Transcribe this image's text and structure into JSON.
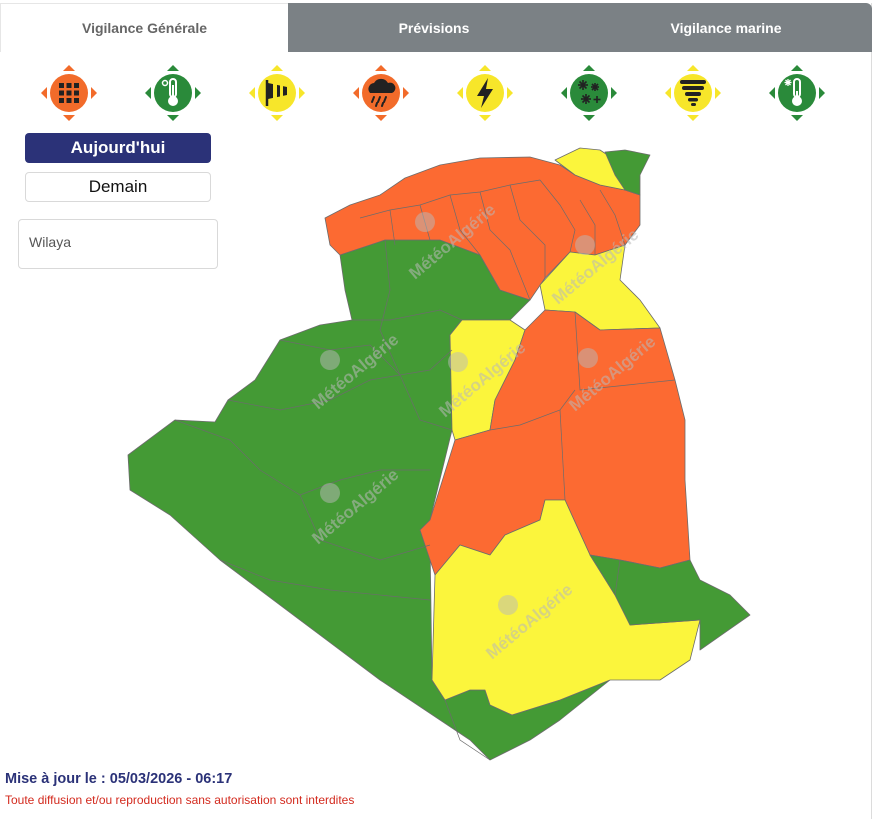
{
  "tabs": [
    {
      "label": "Vigilance Générale",
      "active": true
    },
    {
      "label": "Prévisions",
      "active": false
    },
    {
      "label": "Vigilance marine",
      "active": false
    }
  ],
  "hazards": [
    {
      "icon": "grid-icon",
      "color": "#f26b2a"
    },
    {
      "icon": "thermometer-hot-icon",
      "color": "#3b9b3b"
    },
    {
      "icon": "windsock-icon",
      "color": "#f7e62a"
    },
    {
      "icon": "rain-cloud-icon",
      "color": "#f26b2a"
    },
    {
      "icon": "lightning-icon",
      "color": "#f7e62a"
    },
    {
      "icon": "snowflakes-icon",
      "color": "#2a8a3a"
    },
    {
      "icon": "tornado-icon",
      "color": "#f7e62a"
    },
    {
      "icon": "thermometer-cold-icon",
      "color": "#2a8a3a"
    }
  ],
  "buttons": {
    "today": "Aujourd'hui",
    "tomorrow": "Demain"
  },
  "wilaya": {
    "placeholder": "Wilaya"
  },
  "watermark": "MétéoAlgérie",
  "colors": {
    "green": "#449a35",
    "yellow": "#fbf53c",
    "orange": "#fc6a32",
    "accent": "#2b3278"
  },
  "footer": {
    "updated": "Mise à jour le : 05/03/2026 - 06:17",
    "notice": "Toute diffusion et/ou reproduction sans autorisation sont interdites"
  }
}
